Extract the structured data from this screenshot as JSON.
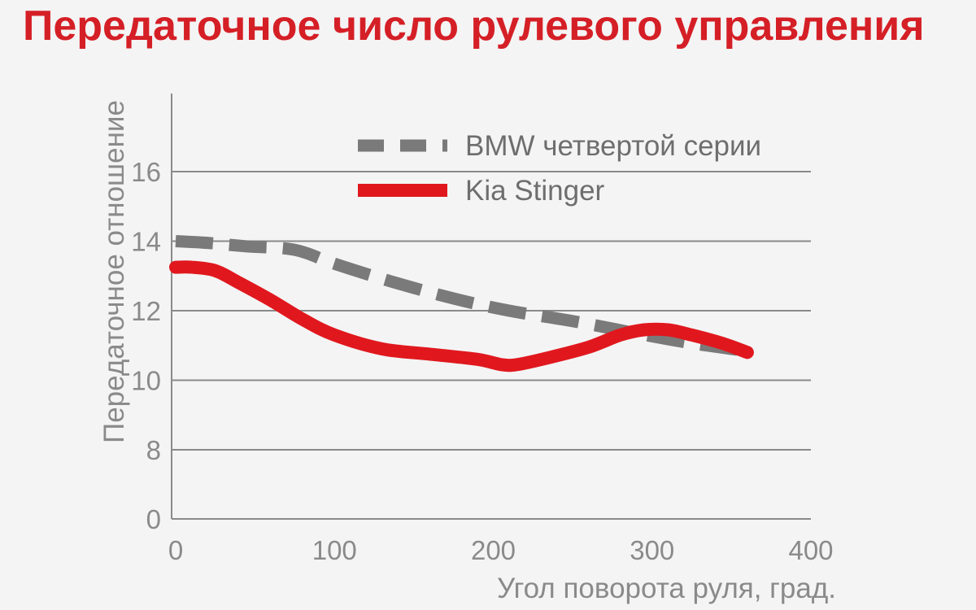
{
  "chart_data": {
    "type": "line",
    "title": "Передаточное число рулевого управления",
    "xlabel": "Угол поворота руля, град.",
    "ylabel": "Передаточное отношение",
    "x_ticks": [
      "0",
      "100",
      "200",
      "300",
      "400"
    ],
    "y_ticks": [
      "0",
      "8",
      "10",
      "12",
      "14",
      "16"
    ],
    "xlim": [
      0,
      400
    ],
    "y_scale_note": "axis break between 0 and 8",
    "grid": "horizontal",
    "legend_position": "top-right",
    "series": [
      {
        "name": "BMW четвертой серии",
        "color": "#7a7a7a",
        "style": "dashed",
        "x": [
          0,
          20,
          45,
          75,
          100,
          135,
          175,
          210,
          250,
          290,
          320,
          350,
          360
        ],
        "y": [
          14.0,
          13.95,
          13.85,
          13.75,
          13.35,
          12.85,
          12.35,
          12.0,
          11.7,
          11.35,
          11.1,
          10.9,
          10.85
        ]
      },
      {
        "name": "Kia Stinger",
        "color": "#e0181e",
        "style": "solid",
        "x": [
          0,
          10,
          25,
          40,
          60,
          80,
          100,
          130,
          160,
          190,
          205,
          215,
          235,
          260,
          280,
          295,
          310,
          325,
          345,
          360
        ],
        "y": [
          13.25,
          13.25,
          13.15,
          12.8,
          12.3,
          11.75,
          11.3,
          10.9,
          10.75,
          10.6,
          10.45,
          10.45,
          10.65,
          10.95,
          11.3,
          11.45,
          11.45,
          11.3,
          11.05,
          10.8
        ]
      }
    ]
  }
}
